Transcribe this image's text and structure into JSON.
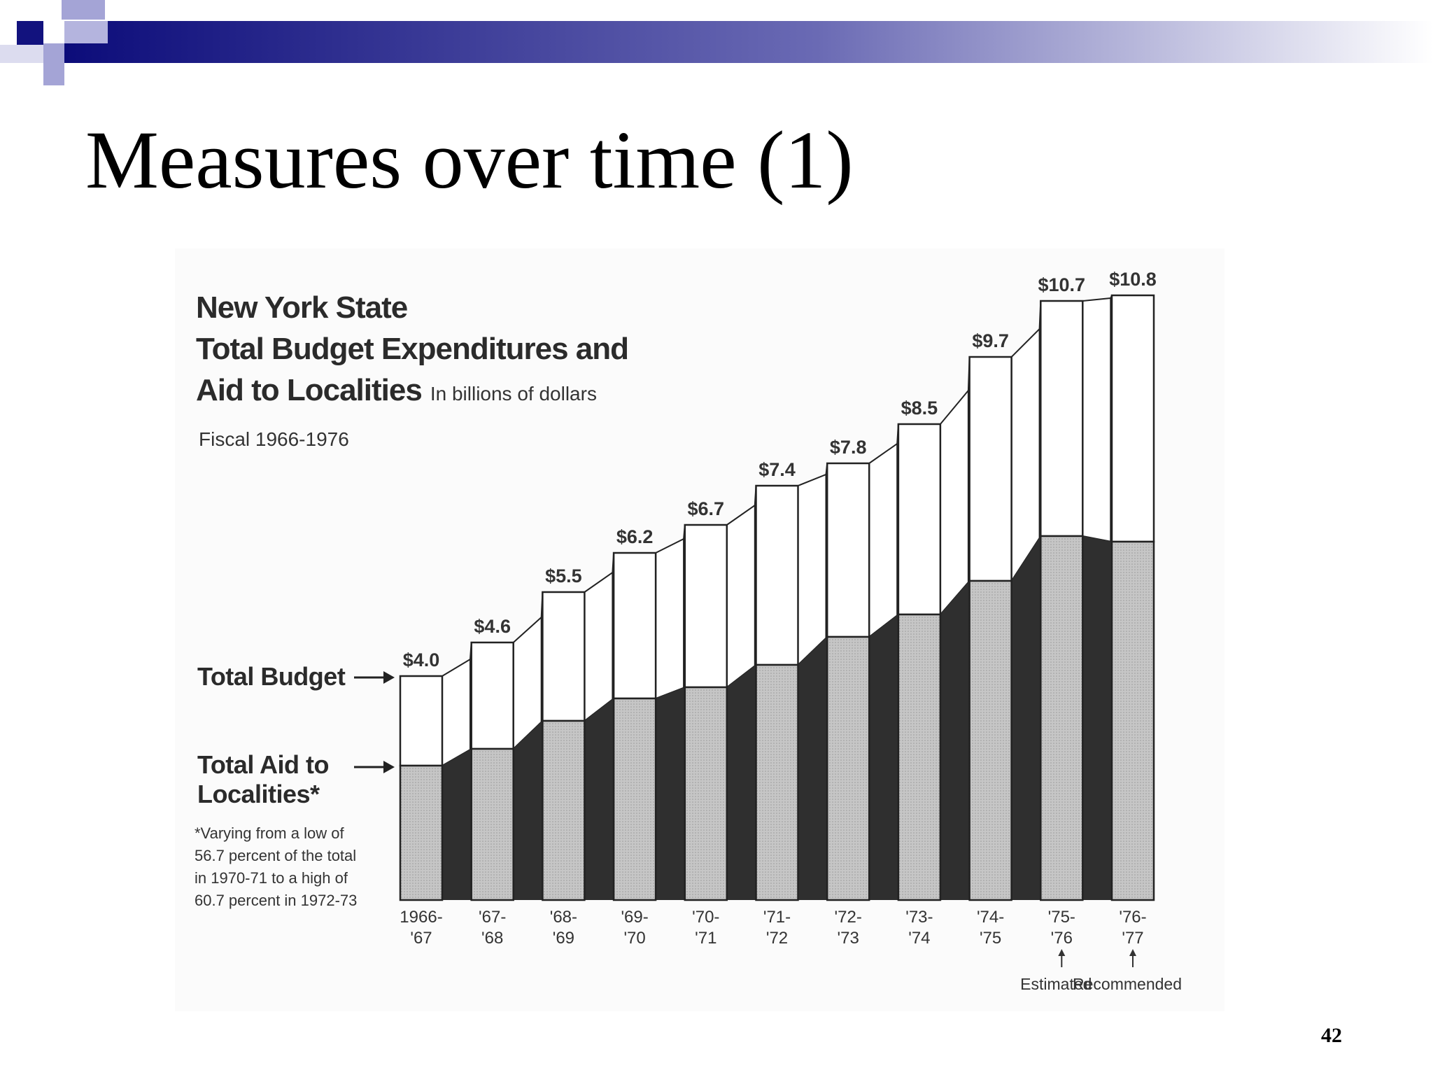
{
  "slide": {
    "title": "Measures over time (1)",
    "page_number": "42"
  },
  "chart_data": {
    "type": "bar",
    "title_lines": [
      "New York State",
      "Total Budget Expenditures and",
      "Aid to Localities"
    ],
    "units": "In billions of dollars",
    "subtitle": "Fiscal 1966-1976",
    "categories": [
      [
        "1966-",
        "'67"
      ],
      [
        "'67-",
        "'68"
      ],
      [
        "'68-",
        "'69"
      ],
      [
        "'69-",
        "'70"
      ],
      [
        "'70-",
        "'71"
      ],
      [
        "'71-",
        "'72"
      ],
      [
        "'72-",
        "'73"
      ],
      [
        "'73-",
        "'74"
      ],
      [
        "'74-",
        "'75"
      ],
      [
        "'75-",
        "'76"
      ],
      [
        "'76-",
        "'77"
      ]
    ],
    "value_labels": [
      "$4.0",
      "$4.6",
      "$5.5",
      "$6.2",
      "$6.7",
      "$7.4",
      "$7.8",
      "$8.5",
      "$9.7",
      "$10.7",
      "$10.8"
    ],
    "series": [
      {
        "name": "Total Budget",
        "values": [
          4.0,
          4.6,
          5.5,
          6.2,
          6.7,
          7.4,
          7.8,
          8.5,
          9.7,
          10.7,
          10.8
        ]
      },
      {
        "name": "Total Aid to Localities*",
        "values": [
          2.4,
          2.7,
          3.2,
          3.6,
          3.8,
          4.2,
          4.7,
          5.1,
          5.7,
          6.5,
          6.4
        ]
      }
    ],
    "ylim": [
      0,
      11
    ],
    "legend": {
      "total_budget": "Total Budget",
      "aid_lines": [
        "Total Aid to",
        "Localities*"
      ]
    },
    "footnote": "*Varying from a low of 56.7 percent of the total in 1970-71 to a high of 60.7 percent in 1972-73",
    "annotations": [
      {
        "category_index": 9,
        "label": "Estimated"
      },
      {
        "category_index": 10,
        "label": "Recommended"
      }
    ],
    "colors": {
      "budget_fill": "#ffffff",
      "aid_fill": "#c6c6c6",
      "connector_fill": "#2f2f2f",
      "outline": "#222222"
    }
  },
  "theme": {
    "band_start": "#0c0c7a",
    "band_end": "#ffffff",
    "square_dark": "#12127e",
    "square_light": "#a4a4d6"
  }
}
